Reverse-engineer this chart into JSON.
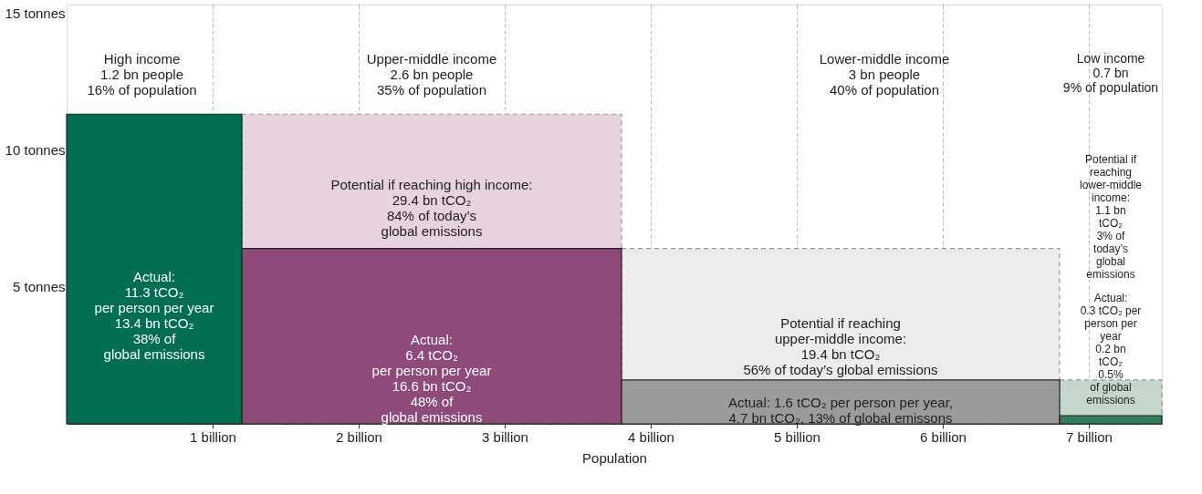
{
  "chart_data": {
    "type": "area",
    "xlabel": "Population",
    "xlim": [
      0,
      7.5
    ],
    "xticks": [
      {
        "value": 1,
        "label": "1 billion"
      },
      {
        "value": 2,
        "label": "2 billion"
      },
      {
        "value": 3,
        "label": "3 billion"
      },
      {
        "value": 4,
        "label": "4 billion"
      },
      {
        "value": 5,
        "label": "5 billion"
      },
      {
        "value": 6,
        "label": "6 billion"
      },
      {
        "value": 7,
        "label": "7 billion"
      }
    ],
    "ylim": [
      0,
      15.3
    ],
    "yticks": [
      {
        "value": 5,
        "label": "5 tonnes"
      },
      {
        "value": 10,
        "label": "10 tonnes"
      },
      {
        "value": 15,
        "label": "15 tonnes"
      }
    ],
    "grid": "x",
    "series": [
      {
        "color": "#e6d3de",
        "line_style": "dashed",
        "x": [
          1.2,
          3.8
        ],
        "values": [
          11.3,
          11.3
        ]
      },
      {
        "color": "#ececec",
        "line_style": "dashed",
        "x": [
          3.8,
          6.8
        ],
        "values": [
          6.4,
          6.4
        ]
      },
      {
        "color": "#c5d6cd",
        "line_style": "dashed",
        "x": [
          6.8,
          7.5
        ],
        "values": [
          1.6,
          1.6
        ]
      },
      {
        "color": "#006f51",
        "line_style": "solid",
        "x": [
          0,
          1.2
        ],
        "values": [
          11.3,
          11.3
        ]
      },
      {
        "color": "#8e4a79",
        "line_style": "solid",
        "x": [
          1.2,
          3.8
        ],
        "values": [
          6.4,
          6.4
        ]
      },
      {
        "color": "#9b9b9b",
        "line_style": "solid",
        "x": [
          3.8,
          6.8
        ],
        "values": [
          1.6,
          1.6
        ]
      },
      {
        "color": "#2e7d5b",
        "line_style": "solid",
        "x": [
          6.8,
          7.5
        ],
        "values": [
          0.3,
          0.3
        ]
      }
    ],
    "annotations": [
      "High income\n1.2 bn people\n16% of population",
      "Upper-middle income\n2.6 bn people\n35% of population",
      "Lower-middle income\n3 bn people\n40% of population",
      "Low income\n0.7 bn\n9% of population",
      "Actual:\n\n11.3 tCO₂\nper person per year\n\n13.4 bn tCO₂\n38% of\nglobal emissions",
      "Potential if reaching high income:\n\n29.4 bn tCO₂\n84% of today’s\nglobal emissions",
      "Actual:\n\n6.4 tCO₂\nper person per year\n\n16.6 bn tCO₂\n48% of\nglobal emissions",
      "Potential if reaching\nupper-middle income:\n\n19.4 bn tCO₂\n56% of today’s global emissions",
      "Actual: 1.6 tCO₂ per person per year,\n4.7 bn tCO₂, 13% of global emissons",
      "Potential if\nreaching\nlower-middle\nincome:\n1.1 bn\ntCO₂\n3% of\ntoday’s\nglobal\nemissions",
      "Actual:\n0.3 tCO₂ per\nperson per\nyear\n0.2 bn\ntCO₂\n\n0.5%\nof global\nemissions"
    ]
  }
}
